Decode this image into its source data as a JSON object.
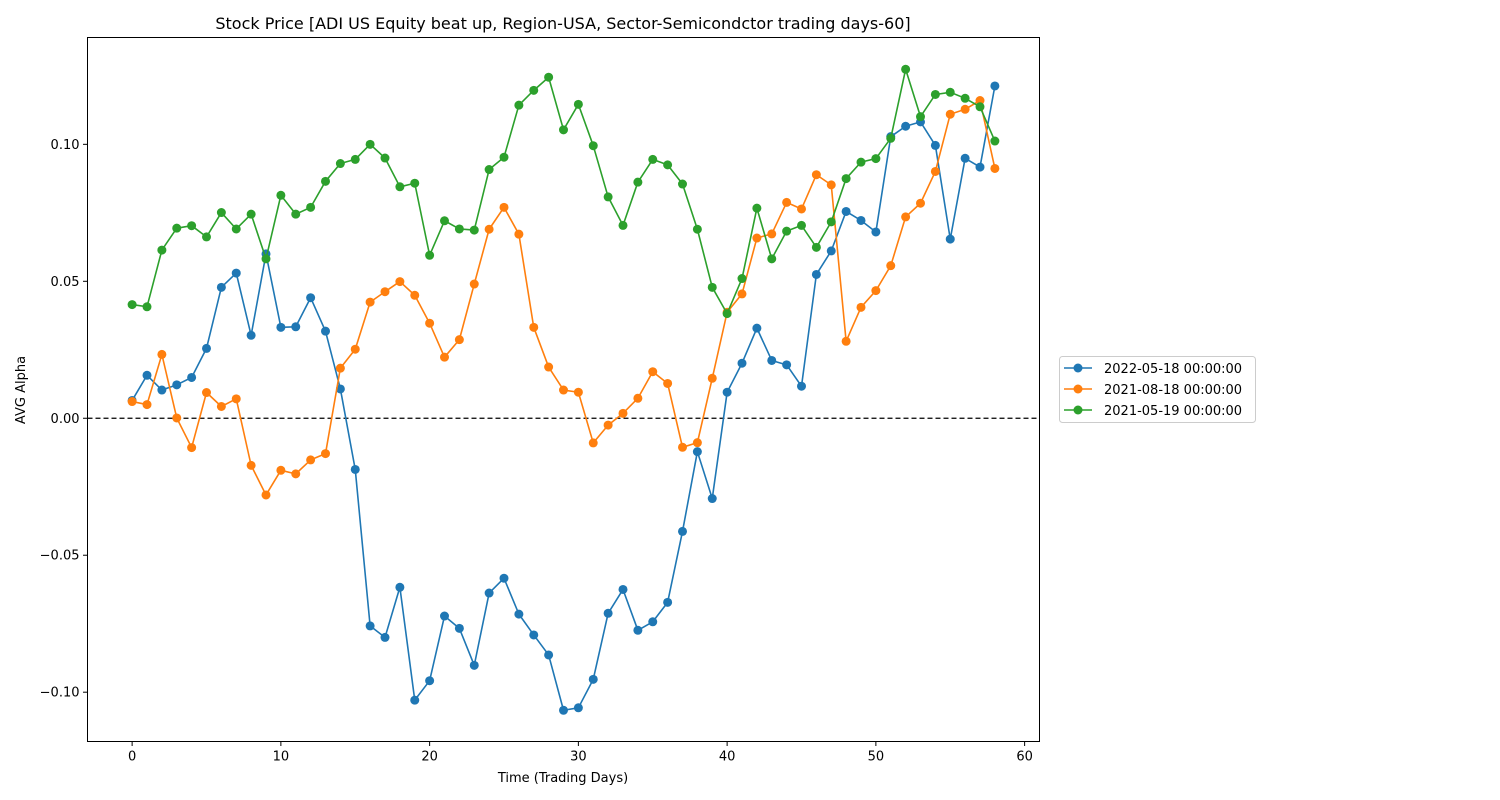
{
  "chart_data": {
    "type": "line",
    "title": "Stock Price [ADI US Equity beat up, Region-USA, Sector-Semicondctor trading days-60]",
    "xlabel": "Time (Trading Days)",
    "ylabel": "AVG Alpha",
    "xlim": [
      -3,
      61
    ],
    "ylim": [
      -0.118,
      0.139
    ],
    "xticks": [
      0,
      10,
      20,
      30,
      40,
      50,
      60
    ],
    "xtick_labels": [
      "0",
      "10",
      "20",
      "30",
      "40",
      "50",
      "60"
    ],
    "yticks": [
      -0.1,
      -0.05,
      0.0,
      0.05,
      0.1
    ],
    "ytick_labels": [
      "−0.10",
      "−0.05",
      "0.00",
      "0.05",
      "0.10"
    ],
    "reference_line": {
      "y": 0.0,
      "style": "dashed",
      "color": "#000000"
    },
    "legend_position": "outside-right",
    "grid": false,
    "x": [
      0,
      1,
      2,
      3,
      4,
      5,
      6,
      7,
      8,
      9,
      10,
      11,
      12,
      13,
      14,
      15,
      16,
      17,
      18,
      19,
      20,
      21,
      22,
      23,
      24,
      25,
      26,
      27,
      28,
      29,
      30,
      31,
      32,
      33,
      34,
      35,
      36,
      37,
      38,
      39,
      40,
      41,
      42,
      43,
      44,
      45,
      46,
      47,
      48,
      49,
      50,
      51,
      52,
      53,
      54,
      55,
      56,
      57,
      58
    ],
    "series": [
      {
        "name": "2022-05-18 00:00:00",
        "color": "#1f77b4",
        "values": [
          0.0065,
          0.0157,
          0.0103,
          0.0122,
          0.0149,
          0.0255,
          0.0478,
          0.053,
          0.0303,
          0.06,
          0.0332,
          0.0334,
          0.044,
          0.0318,
          0.0107,
          -0.0187,
          -0.0758,
          -0.08,
          -0.0617,
          -0.1029,
          -0.0958,
          -0.0722,
          -0.0767,
          -0.0902,
          -0.0638,
          -0.0584,
          -0.0715,
          -0.0791,
          -0.0864,
          -0.1066,
          -0.1057,
          -0.0953,
          -0.0712,
          -0.0625,
          -0.0774,
          -0.0743,
          -0.0672,
          -0.0413,
          -0.0122,
          -0.0293,
          0.0095,
          0.0201,
          0.0329,
          0.0211,
          0.0195,
          0.0117,
          0.0525,
          0.0611,
          0.0755,
          0.0722,
          0.068,
          0.1028,
          0.1066,
          0.1082,
          0.0996,
          0.0654,
          0.0949,
          0.0917,
          0.1213
        ]
      },
      {
        "name": "2021-08-18 00:00:00",
        "color": "#ff7f0e",
        "values": [
          0.0061,
          0.005,
          0.0233,
          0.0001,
          -0.0107,
          0.0094,
          0.0043,
          0.0071,
          -0.0172,
          -0.028,
          -0.019,
          -0.0203,
          -0.0152,
          -0.0129,
          0.0183,
          0.0252,
          0.0424,
          0.0462,
          0.0499,
          0.0449,
          0.0347,
          0.0223,
          0.0287,
          0.049,
          0.069,
          0.077,
          0.0672,
          0.0332,
          0.0187,
          0.0103,
          0.0095,
          -0.009,
          -0.0025,
          0.0018,
          0.0073,
          0.017,
          0.0127,
          -0.0106,
          -0.0089,
          0.0146,
          0.0387,
          0.0454,
          0.0658,
          0.0673,
          0.0788,
          0.0764,
          0.0889,
          0.0852,
          0.0281,
          0.0405,
          0.0466,
          0.0557,
          0.0735,
          0.0785,
          0.0901,
          0.111,
          0.1128,
          0.116,
          0.0912
        ]
      },
      {
        "name": "2021-05-19 00:00:00",
        "color": "#2ca02c",
        "values": [
          0.0415,
          0.0407,
          0.0614,
          0.0694,
          0.0703,
          0.0662,
          0.0751,
          0.0691,
          0.0745,
          0.0582,
          0.0814,
          0.0745,
          0.077,
          0.0865,
          0.093,
          0.0945,
          0.1,
          0.095,
          0.0845,
          0.0858,
          0.0595,
          0.0721,
          0.0691,
          0.0687,
          0.0908,
          0.0953,
          0.1143,
          0.1197,
          0.1245,
          0.1053,
          0.1146,
          0.0995,
          0.0808,
          0.0704,
          0.0862,
          0.0945,
          0.0925,
          0.0855,
          0.069,
          0.0478,
          0.0382,
          0.051,
          0.0767,
          0.0582,
          0.0683,
          0.0704,
          0.0624,
          0.0717,
          0.0875,
          0.0935,
          0.0948,
          0.1022,
          0.1274,
          0.1101,
          0.1182,
          0.119,
          0.1168,
          0.1137,
          0.1012
        ]
      }
    ]
  }
}
